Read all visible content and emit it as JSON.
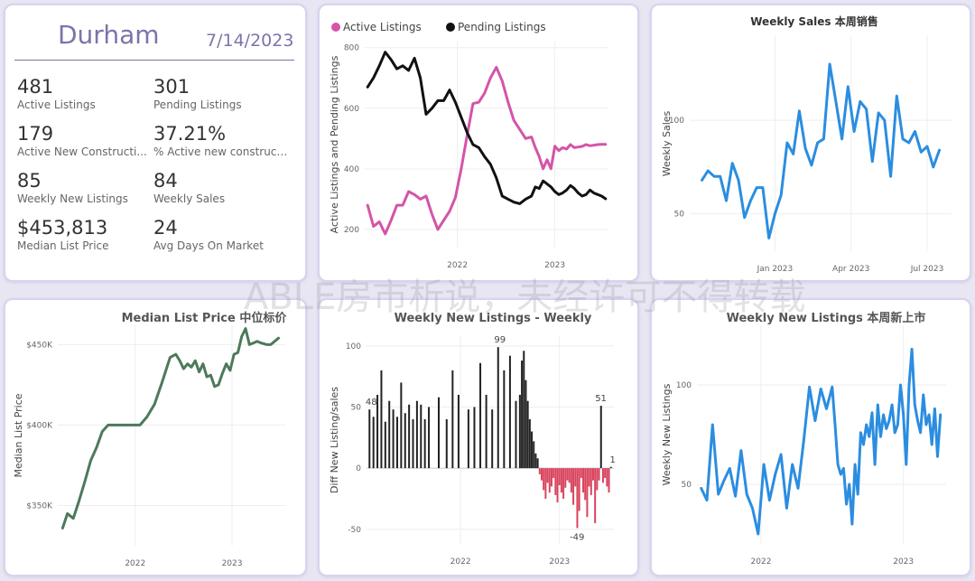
{
  "kpi": {
    "city": "Durham",
    "date": "7/14/2023",
    "items": [
      {
        "value": "481",
        "label": "Active Listings"
      },
      {
        "value": "301",
        "label": "Pending Listings"
      },
      {
        "value": "179",
        "label": "Active New Constructi..."
      },
      {
        "value": "37.21%",
        "label": "% Active new constructions"
      },
      {
        "value": "85",
        "label": "Weekly New Listings"
      },
      {
        "value": "84",
        "label": "Weekly Sales"
      },
      {
        "value": "$453,813",
        "label": "Median List Price"
      },
      {
        "value": "24",
        "label": "Avg Days On Market"
      }
    ]
  },
  "watermark": "ABLE房市析说，未经许可不得转载",
  "chart_data": [
    {
      "id": "active-pending",
      "type": "line",
      "title": "",
      "ylabel": "Active Listings and Pending Listings",
      "xlabel": "",
      "ylim": [
        140,
        820
      ],
      "yticks": [
        200,
        400,
        600,
        800
      ],
      "xrange": [
        2021.05,
        2023.55
      ],
      "xticks": [
        {
          "x": 2022,
          "label": "2022"
        },
        {
          "x": 2023,
          "label": "2023"
        }
      ],
      "legend": "top-left",
      "series": [
        {
          "name": "Active Listings",
          "color": "#d454a8",
          "x": [
            2021.08,
            2021.14,
            2021.2,
            2021.26,
            2021.32,
            2021.38,
            2021.44,
            2021.5,
            2021.56,
            2021.62,
            2021.68,
            2021.74,
            2021.8,
            2021.86,
            2021.92,
            2021.98,
            2022.04,
            2022.1,
            2022.16,
            2022.22,
            2022.28,
            2022.34,
            2022.4,
            2022.46,
            2022.52,
            2022.58,
            2022.64,
            2022.7,
            2022.76,
            2022.8,
            2022.84,
            2022.88,
            2022.92,
            2022.96,
            2023.0,
            2023.04,
            2023.08,
            2023.12,
            2023.16,
            2023.2,
            2023.24,
            2023.28,
            2023.32,
            2023.36,
            2023.4,
            2023.44,
            2023.48,
            2023.52
          ],
          "values": [
            280,
            210,
            225,
            185,
            230,
            280,
            280,
            325,
            315,
            300,
            310,
            250,
            200,
            230,
            260,
            305,
            400,
            510,
            615,
            620,
            650,
            700,
            735,
            690,
            620,
            560,
            530,
            500,
            505,
            470,
            440,
            400,
            430,
            400,
            475,
            460,
            470,
            465,
            480,
            470,
            472,
            474,
            480,
            476,
            478,
            480,
            481,
            481
          ]
        },
        {
          "name": "Pending Listings",
          "color": "#111111",
          "x": [
            2021.08,
            2021.14,
            2021.2,
            2021.26,
            2021.32,
            2021.38,
            2021.44,
            2021.5,
            2021.56,
            2021.62,
            2021.68,
            2021.74,
            2021.8,
            2021.86,
            2021.92,
            2021.98,
            2022.04,
            2022.1,
            2022.16,
            2022.22,
            2022.28,
            2022.34,
            2022.4,
            2022.46,
            2022.52,
            2022.58,
            2022.64,
            2022.7,
            2022.76,
            2022.8,
            2022.84,
            2022.88,
            2022.92,
            2022.96,
            2023.0,
            2023.04,
            2023.08,
            2023.12,
            2023.16,
            2023.2,
            2023.24,
            2023.28,
            2023.32,
            2023.36,
            2023.4,
            2023.44,
            2023.48,
            2023.52
          ],
          "values": [
            670,
            700,
            740,
            785,
            760,
            730,
            740,
            725,
            765,
            700,
            580,
            600,
            625,
            625,
            660,
            620,
            570,
            520,
            480,
            470,
            440,
            415,
            370,
            310,
            300,
            290,
            285,
            300,
            310,
            340,
            335,
            360,
            350,
            340,
            325,
            315,
            320,
            330,
            345,
            335,
            320,
            310,
            315,
            330,
            320,
            315,
            310,
            301
          ]
        }
      ]
    },
    {
      "id": "weekly-sales",
      "type": "line",
      "title": "Weekly Sales 本周销售",
      "ylabel": "Weekly Sales",
      "xlabel": "",
      "ylim": [
        30,
        145
      ],
      "yticks": [
        50,
        100
      ],
      "xrange": [
        2022.72,
        2023.58
      ],
      "xticks": [
        {
          "x": 2023.0,
          "label": "Jan 2023"
        },
        {
          "x": 2023.25,
          "label": "Apr 2023"
        },
        {
          "x": 2023.5,
          "label": "Jul 2023"
        }
      ],
      "legend": "none",
      "series": [
        {
          "name": "",
          "color": "#2b8de0",
          "x": [
            2022.76,
            2022.78,
            2022.8,
            2022.82,
            2022.84,
            2022.86,
            2022.88,
            2022.9,
            2022.92,
            2022.94,
            2022.96,
            2022.98,
            2023.0,
            2023.02,
            2023.04,
            2023.06,
            2023.08,
            2023.1,
            2023.12,
            2023.14,
            2023.16,
            2023.18,
            2023.2,
            2023.22,
            2023.24,
            2023.26,
            2023.28,
            2023.3,
            2023.32,
            2023.34,
            2023.36,
            2023.38,
            2023.4,
            2023.42,
            2023.44,
            2023.46,
            2023.48,
            2023.5,
            2023.52,
            2023.54
          ],
          "values": [
            68,
            73,
            70,
            70,
            57,
            77,
            68,
            48,
            57,
            64,
            64,
            37,
            50,
            60,
            88,
            82,
            105,
            85,
            76,
            88,
            90,
            130,
            110,
            90,
            118,
            94,
            110,
            106,
            78,
            104,
            100,
            70,
            113,
            90,
            88,
            94,
            83,
            86,
            75,
            84
          ]
        }
      ]
    },
    {
      "id": "median-list-price",
      "type": "line",
      "title": "Median List Price 中位标价",
      "ylabel": "Median List Price",
      "xlabel": "",
      "ylim": [
        325000,
        462000
      ],
      "yticks": [
        {
          "v": 350000,
          "label": "$350K"
        },
        {
          "v": 400000,
          "label": "$400K"
        },
        {
          "v": 450000,
          "label": "$450K"
        }
      ],
      "xrange": [
        2021.2,
        2023.55
      ],
      "xticks": [
        {
          "x": 2022,
          "label": "2022"
        },
        {
          "x": 2023,
          "label": "2023"
        }
      ],
      "legend": "none",
      "series": [
        {
          "name": "",
          "color": "#4c7a5a",
          "x": [
            2021.25,
            2021.3,
            2021.36,
            2021.42,
            2021.48,
            2021.54,
            2021.6,
            2021.66,
            2021.72,
            2021.78,
            2021.9,
            2022.0,
            2022.05,
            2022.12,
            2022.2,
            2022.28,
            2022.36,
            2022.42,
            2022.46,
            2022.5,
            2022.54,
            2022.58,
            2022.62,
            2022.66,
            2022.7,
            2022.74,
            2022.78,
            2022.82,
            2022.86,
            2022.9,
            2022.94,
            2022.98,
            2023.02,
            2023.06,
            2023.1,
            2023.14,
            2023.18,
            2023.22,
            2023.26,
            2023.3,
            2023.36,
            2023.4,
            2023.44,
            2023.48
          ],
          "values": [
            336000,
            345000,
            342000,
            353000,
            365000,
            378000,
            386000,
            396000,
            400000,
            400000,
            400000,
            400000,
            400000,
            405000,
            413000,
            427000,
            442000,
            444000,
            440000,
            435000,
            438000,
            436000,
            440000,
            433000,
            438000,
            430000,
            431000,
            424000,
            425000,
            432000,
            438000,
            434000,
            444000,
            445000,
            455000,
            460000,
            450000,
            451000,
            452000,
            451000,
            450000,
            450000,
            452000,
            454000
          ]
        }
      ]
    },
    {
      "id": "diff-new-listings",
      "type": "bar",
      "title": "Weekly New Listings - Weekly",
      "ylabel": "Diff New Listing/sales",
      "xlabel": "",
      "ylim": [
        -62,
        108
      ],
      "yticks": [
        -50,
        0,
        50,
        100
      ],
      "xrange": [
        2021.05,
        2023.55
      ],
      "xticks": [
        {
          "x": 2022,
          "label": "2022"
        },
        {
          "x": 2023,
          "label": "2023"
        }
      ],
      "legend": "none",
      "positive_color": "#222222",
      "negative_color": "#d9445d",
      "x": [
        2021.08,
        2021.12,
        2021.16,
        2021.2,
        2021.24,
        2021.28,
        2021.32,
        2021.36,
        2021.4,
        2021.44,
        2021.48,
        2021.52,
        2021.56,
        2021.6,
        2021.64,
        2021.68,
        2021.78,
        2021.86,
        2021.92,
        2021.98,
        2022.08,
        2022.14,
        2022.2,
        2022.26,
        2022.32,
        2022.38,
        2022.44,
        2022.5,
        2022.56,
        2022.6,
        2022.62,
        2022.64,
        2022.66,
        2022.68,
        2022.7,
        2022.72,
        2022.74,
        2022.76,
        2022.78,
        2022.8,
        2022.82,
        2022.84,
        2022.86,
        2022.88,
        2022.9,
        2022.92,
        2022.94,
        2022.96,
        2022.98,
        2023.0,
        2023.02,
        2023.04,
        2023.06,
        2023.08,
        2023.1,
        2023.12,
        2023.14,
        2023.16,
        2023.18,
        2023.2,
        2023.22,
        2023.24,
        2023.26,
        2023.28,
        2023.3,
        2023.32,
        2023.34,
        2023.36,
        2023.38,
        2023.4,
        2023.42,
        2023.44,
        2023.46,
        2023.48,
        2023.5,
        2023.52
      ],
      "values": [
        48,
        42,
        60,
        80,
        38,
        55,
        48,
        42,
        70,
        45,
        52,
        40,
        55,
        52,
        40,
        50,
        58,
        40,
        80,
        60,
        48,
        50,
        86,
        60,
        48,
        99,
        80,
        92,
        55,
        60,
        88,
        96,
        72,
        55,
        40,
        30,
        22,
        12,
        8,
        -5,
        -10,
        -18,
        -25,
        -12,
        -20,
        -15,
        -8,
        -22,
        -28,
        -14,
        -20,
        -25,
        -16,
        -10,
        -12,
        -20,
        -30,
        -15,
        -49,
        -35,
        -8,
        -20,
        -26,
        -40,
        -15,
        -22,
        -10,
        -45,
        -18,
        -10,
        51,
        -12,
        -8,
        -15,
        -20,
        1
      ],
      "annotations": [
        {
          "x": 2021.08,
          "v": 48,
          "label": "48"
        },
        {
          "x": 2022.38,
          "v": 99,
          "label": "99"
        },
        {
          "x": 2023.4,
          "v": 51,
          "label": "51"
        },
        {
          "x": 2023.16,
          "v": -49,
          "label": "-49"
        },
        {
          "x": 2023.52,
          "v": 1,
          "label": "1"
        }
      ]
    },
    {
      "id": "weekly-new-listings",
      "type": "line",
      "title": "Weekly New Listings 本周新上市",
      "ylabel": "Weekly New Listings",
      "xlabel": "",
      "ylim": [
        20,
        130
      ],
      "yticks": [
        50,
        100
      ],
      "xrange": [
        2021.55,
        2023.3
      ],
      "xticks": [
        {
          "x": 2022,
          "label": "2022"
        },
        {
          "x": 2023,
          "label": "2023"
        }
      ],
      "legend": "none",
      "series": [
        {
          "name": "",
          "color": "#2b8de0",
          "x": [
            2021.58,
            2021.62,
            2021.66,
            2021.7,
            2021.74,
            2021.78,
            2021.82,
            2021.86,
            2021.9,
            2021.94,
            2021.98,
            2022.02,
            2022.06,
            2022.1,
            2022.14,
            2022.18,
            2022.22,
            2022.26,
            2022.3,
            2022.34,
            2022.38,
            2022.42,
            2022.46,
            2022.5,
            2022.52,
            2022.54,
            2022.56,
            2022.58,
            2022.6,
            2022.62,
            2022.64,
            2022.66,
            2022.68,
            2022.7,
            2022.72,
            2022.74,
            2022.76,
            2022.78,
            2022.8,
            2022.82,
            2022.84,
            2022.86,
            2022.88,
            2022.9,
            2022.92,
            2022.94,
            2022.96,
            2022.98,
            2023.0,
            2023.02,
            2023.04,
            2023.06,
            2023.08,
            2023.1,
            2023.12,
            2023.14,
            2023.16,
            2023.18,
            2023.2,
            2023.22,
            2023.24,
            2023.26
          ],
          "values": [
            48,
            42,
            80,
            45,
            52,
            58,
            44,
            67,
            45,
            38,
            25,
            60,
            42,
            55,
            65,
            38,
            60,
            48,
            72,
            99,
            82,
            98,
            88,
            99,
            80,
            60,
            55,
            58,
            40,
            50,
            30,
            60,
            45,
            76,
            70,
            80,
            74,
            86,
            60,
            90,
            74,
            85,
            78,
            82,
            90,
            76,
            80,
            100,
            85,
            60,
            100,
            118,
            90,
            82,
            76,
            95,
            80,
            85,
            70,
            88,
            64,
            85
          ]
        }
      ]
    }
  ]
}
